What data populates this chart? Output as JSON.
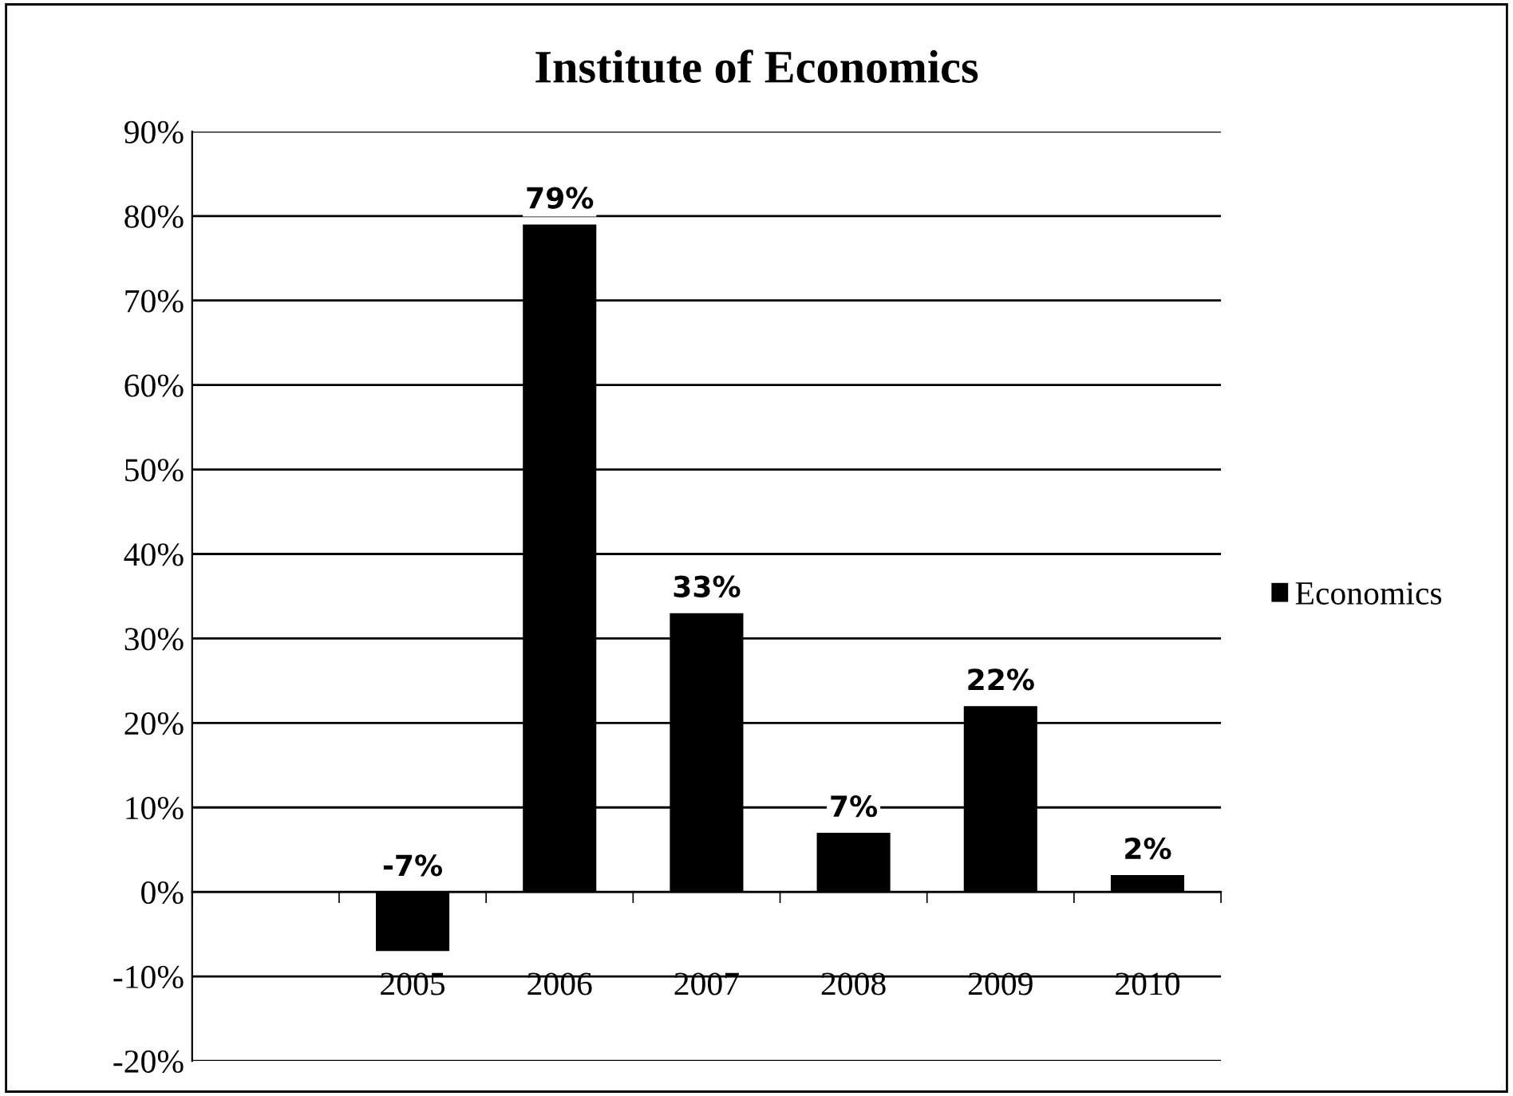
{
  "chart_data": {
    "type": "bar",
    "title": "Institute of Economics",
    "categories": [
      null,
      "2005",
      "2006",
      "2007",
      "2008",
      "2009",
      "2010"
    ],
    "series": [
      {
        "name": "Economics",
        "color": "#000000",
        "values": [
          null,
          -7,
          79,
          33,
          7,
          22,
          2
        ]
      }
    ],
    "ylim": [
      -20,
      90
    ],
    "yticks": [
      {
        "value": -20,
        "label": "-20%"
      },
      {
        "value": -10,
        "label": "-10%"
      },
      {
        "value": 0,
        "label": "0%"
      },
      {
        "value": 10,
        "label": "10%"
      },
      {
        "value": 20,
        "label": "20%"
      },
      {
        "value": 30,
        "label": "30%"
      },
      {
        "value": 40,
        "label": "40%"
      },
      {
        "value": 50,
        "label": "50%"
      },
      {
        "value": 60,
        "label": "60%"
      },
      {
        "value": 70,
        "label": "70%"
      },
      {
        "value": 80,
        "label": "80%"
      },
      {
        "value": 90,
        "label": "90%"
      }
    ],
    "value_labels": [
      null,
      "-7%",
      "79%",
      "33%",
      "7%",
      "22%",
      "2%"
    ],
    "grid": "y",
    "legend": "right"
  }
}
